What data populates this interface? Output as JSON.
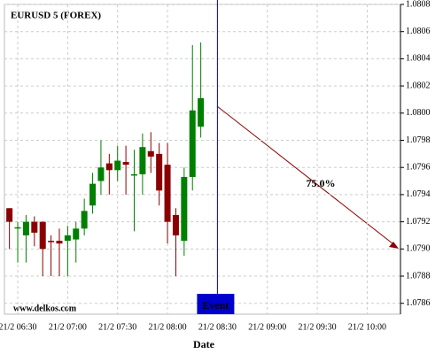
{
  "chart_data": {
    "type": "candlestick",
    "title": "EURUSD 5 (FOREX)",
    "x_label": "Date",
    "watermark": "www.delkos.com",
    "x": [
      "21/2 06:25",
      "21/2 06:30",
      "21/2 06:35",
      "21/2 06:40",
      "21/2 06:45",
      "21/2 06:50",
      "21/2 06:55",
      "21/2 07:00",
      "21/2 07:05",
      "21/2 07:10",
      "21/2 07:15",
      "21/2 07:20",
      "21/2 07:25",
      "21/2 07:30",
      "21/2 07:35",
      "21/2 07:40",
      "21/2 07:45",
      "21/2 07:50",
      "21/2 07:55",
      "21/2 08:00",
      "21/2 08:05",
      "21/2 08:10",
      "21/2 08:15",
      "21/2 08:20"
    ],
    "open": [
      1.0793,
      1.07916,
      1.0791,
      1.0792,
      1.0792,
      1.07906,
      1.07906,
      1.07906,
      1.07907,
      1.07915,
      1.07932,
      1.0795,
      1.07963,
      1.07958,
      1.07964,
      1.07954,
      1.07955,
      1.07972,
      1.0797,
      1.07962,
      1.07925,
      1.07906,
      1.07953,
      1.0799
    ],
    "high": [
      1.0793,
      1.0792,
      1.07925,
      1.07924,
      1.0792,
      1.0791,
      1.07915,
      1.07917,
      1.0792,
      1.07937,
      1.07956,
      1.0798,
      1.0797,
      1.07976,
      1.07976,
      1.07973,
      1.07985,
      1.07986,
      1.07978,
      1.07978,
      1.0793,
      1.0796,
      1.0805,
      1.08052
    ],
    "low": [
      1.079,
      1.0789,
      1.0789,
      1.07902,
      1.0788,
      1.0788,
      1.0788,
      1.0788,
      1.0789,
      1.0791,
      1.07926,
      1.0794,
      1.0794,
      1.0795,
      1.0794,
      1.07913,
      1.0794,
      1.07956,
      1.07932,
      1.07904,
      1.0788,
      1.07895,
      1.07943,
      1.07982
    ],
    "close": [
      1.0792,
      1.07916,
      1.0792,
      1.07912,
      1.079,
      1.07905,
      1.07904,
      1.0791,
      1.07915,
      1.07928,
      1.07948,
      1.0796,
      1.07958,
      1.07965,
      1.07962,
      1.07955,
      1.07975,
      1.07968,
      1.07943,
      1.0792,
      1.0791,
      1.07953,
      1.08002,
      1.08011
    ],
    "up_color": "#008000",
    "down_color": "#8b0000",
    "xlim": [
      "21/2 06:22",
      "21/2 10:20"
    ],
    "xticks": [
      "21/2 06:30",
      "21/2 07:00",
      "21/2 07:30",
      "21/2 08:00",
      "21/2 08:30",
      "21/2 09:00",
      "21/2 09:30",
      "21/2 10:00"
    ],
    "ylim": [
      1.07852,
      1.0808
    ],
    "yticks": [
      1.0786,
      1.0788,
      {
        "value": 1.079,
        "label": "1.0790"
      },
      1.0792,
      1.0794,
      1.0796,
      1.0798,
      {
        "value": 1.08,
        "label": "1.0800"
      },
      1.0802,
      1.0804,
      1.0806,
      1.0808
    ],
    "grid": true,
    "event": {
      "x": "21/2 08:30",
      "label": "Event",
      "color": "#0000cc"
    },
    "annotation": {
      "label": "75.0%",
      "color": "#8b0000"
    }
  }
}
